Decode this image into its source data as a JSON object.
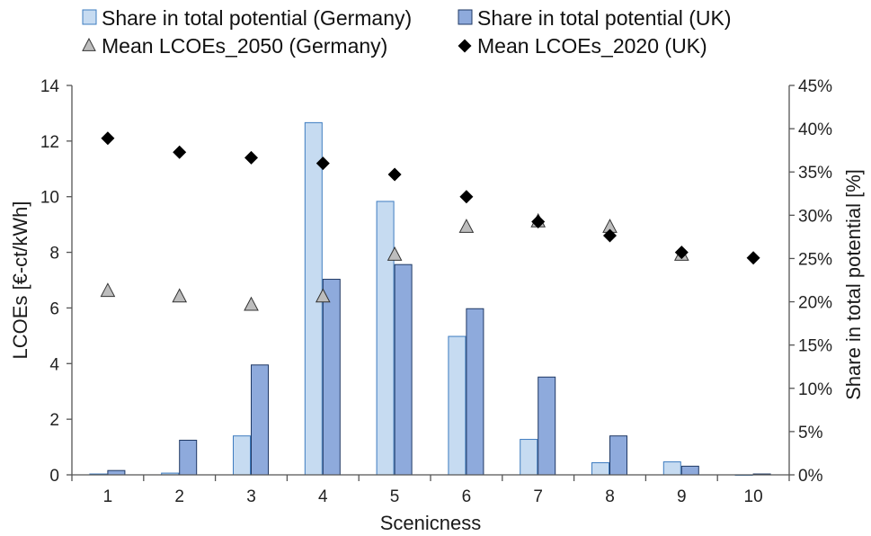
{
  "chart_data": {
    "type": "bar",
    "xlabel": "Scenicness",
    "ylabel": "LCOEs [€-ct/kWh]",
    "y2label": "Share in total potential [%]",
    "categories": [
      "1",
      "2",
      "3",
      "4",
      "5",
      "6",
      "7",
      "8",
      "9",
      "10"
    ],
    "ylim": [
      0,
      14
    ],
    "yticks": [
      "0",
      "2",
      "4",
      "6",
      "8",
      "10",
      "12",
      "14"
    ],
    "y2lim": [
      0,
      45
    ],
    "y2ticks": [
      "0%",
      "5%",
      "10%",
      "15%",
      "20%",
      "25%",
      "30%",
      "35%",
      "40%",
      "45%"
    ],
    "grid": false,
    "legend_position": "top",
    "series": [
      {
        "name": "Share in total potential (Germany)",
        "kind": "bar",
        "axis": "right",
        "color": "#c6dbf1",
        "stroke": "#3e7cc0",
        "values": [
          0.1,
          0.2,
          4.5,
          40.7,
          31.6,
          16.0,
          4.1,
          1.4,
          1.5,
          0.0
        ]
      },
      {
        "name": "Share in total potential (UK)",
        "kind": "bar",
        "axis": "right",
        "color": "#8eaadc",
        "stroke": "#1f3864",
        "values": [
          0.5,
          4.0,
          12.7,
          22.6,
          24.3,
          19.2,
          11.3,
          4.5,
          1.0,
          0.1
        ]
      },
      {
        "name": "Mean LCOEs_2050 (Germany)",
        "kind": "scatter",
        "axis": "left",
        "marker": "triangle",
        "color": "#bdbdbd",
        "stroke": "#333333",
        "values": [
          6.6,
          6.4,
          6.1,
          6.4,
          7.9,
          8.9,
          9.1,
          8.9,
          7.9,
          null
        ]
      },
      {
        "name": "Mean LCOEs_2020 (UK)",
        "kind": "scatter",
        "axis": "left",
        "marker": "diamond",
        "color": "#000000",
        "stroke": "#000000",
        "values": [
          12.1,
          11.6,
          11.4,
          11.2,
          10.8,
          10.0,
          9.1,
          8.6,
          8.0,
          7.8
        ]
      }
    ]
  }
}
